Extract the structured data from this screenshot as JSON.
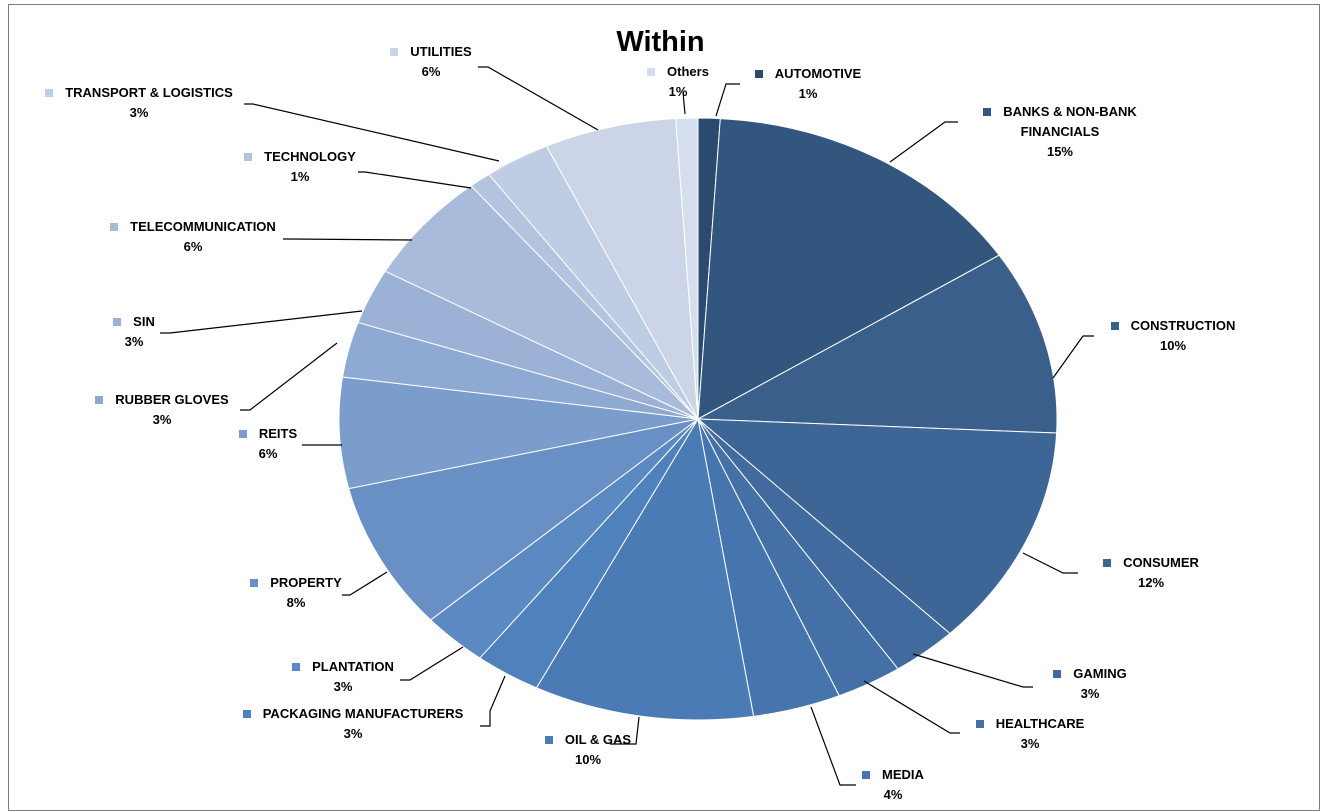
{
  "chart_data": {
    "type": "pie",
    "title": "Within",
    "slices": [
      {
        "label": "AUTOMOTIVE",
        "value": 1,
        "pct_text": "1%",
        "color": "#2c4a70"
      },
      {
        "label": "BANKS & NON-BANK FINANCIALS",
        "value": 15,
        "pct_text": "15%",
        "color": "#33567f"
      },
      {
        "label": "CONSTRUCTION",
        "value": 10,
        "pct_text": "10%",
        "color": "#3a5f8b"
      },
      {
        "label": "CONSUMER",
        "value": 12,
        "pct_text": "12%",
        "color": "#3d6596"
      },
      {
        "label": "GAMING",
        "value": 3,
        "pct_text": "3%",
        "color": "#416b9e"
      },
      {
        "label": "HEALTHCARE",
        "value": 3,
        "pct_text": "3%",
        "color": "#4470a6"
      },
      {
        "label": "MEDIA",
        "value": 4,
        "pct_text": "4%",
        "color": "#4675ae"
      },
      {
        "label": "OIL & GAS",
        "value": 10,
        "pct_text": "10%",
        "color": "#4a7bb5"
      },
      {
        "label": "PACKAGING MANUFACTURERS",
        "value": 3,
        "pct_text": "3%",
        "color": "#4f81bd"
      },
      {
        "label": "PLANTATION",
        "value": 3,
        "pct_text": "3%",
        "color": "#5b89c1"
      },
      {
        "label": "PROPERTY",
        "value": 8,
        "pct_text": "8%",
        "color": "#6890c5"
      },
      {
        "label": "REITS",
        "value": 6,
        "pct_text": "6%",
        "color": "#7b9dcb"
      },
      {
        "label": "RUBBER GLOVES",
        "value": 3,
        "pct_text": "3%",
        "color": "#8ea9d2"
      },
      {
        "label": "SIN",
        "value": 3,
        "pct_text": "3%",
        "color": "#9bb2d6"
      },
      {
        "label": "TELECOMMUNICATION",
        "value": 6,
        "pct_text": "6%",
        "color": "#a8bbdb"
      },
      {
        "label": "TECHNOLOGY",
        "value": 1,
        "pct_text": "1%",
        "color": "#b4c4df"
      },
      {
        "label": "TRANSPORT & LOGISTICS",
        "value": 3,
        "pct_text": "3%",
        "color": "#bfcde4"
      },
      {
        "label": "UTILITIES",
        "value": 6,
        "pct_text": "6%",
        "color": "#cbd5e7"
      },
      {
        "label": "Others",
        "value": 1,
        "pct_text": "1%",
        "color": "#d5deec"
      }
    ]
  }
}
